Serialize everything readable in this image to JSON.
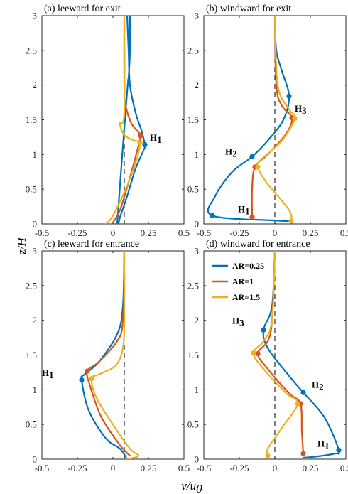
{
  "figure": {
    "xlabel_main": "v/u",
    "xlabel_sub": "0",
    "ylabel": "z/H",
    "colors": {
      "AR=0.25": "#0072BD",
      "AR=1": "#D95319",
      "AR=1.5": "#EDB120"
    }
  },
  "chart_data": [
    {
      "type": "line",
      "title": "(a) leeward for exit",
      "xlim": [
        -0.5,
        0.5
      ],
      "ylim": [
        0,
        3
      ],
      "xticks": [
        "-0.5",
        "-0.25",
        "0",
        "0.25",
        "0.5"
      ],
      "yticks": [
        "0",
        "0.5",
        "1",
        "1.5",
        "2",
        "2.5",
        "3"
      ],
      "reference_x": 0.08,
      "series": [
        {
          "name": "AR=0.25",
          "color": "#0072BD",
          "x": [
            0.12,
            0.12,
            0.11,
            0.1,
            0.03,
            0.05,
            0.1,
            0.16,
            0.22,
            0.225,
            0.2,
            0.16,
            0.12,
            0.11,
            0.1
          ],
          "y": [
            3.0,
            2.5,
            2.1,
            1.9,
            0.0,
            0.1,
            0.4,
            0.8,
            1.08,
            1.14,
            1.35,
            1.6,
            2.0,
            2.5,
            3.0
          ]
        },
        {
          "name": "AR=1",
          "color": "#D95319",
          "x": [
            0.08,
            0.08,
            0.09,
            0.13,
            0.18,
            0.195,
            0.17,
            0.11,
            0.05,
            0.0
          ],
          "y": [
            3.0,
            2.0,
            1.7,
            1.45,
            1.32,
            1.27,
            1.05,
            0.6,
            0.2,
            0.02
          ]
        },
        {
          "name": "AR=1.5",
          "color": "#EDB120",
          "x": [
            0.08,
            0.08,
            0.05,
            0.08,
            0.15,
            0.19,
            0.17,
            0.1,
            0.0,
            -0.05
          ],
          "y": [
            3.0,
            1.6,
            1.45,
            1.28,
            1.2,
            1.17,
            0.95,
            0.55,
            0.12,
            0.0
          ]
        }
      ],
      "markers": [
        {
          "series": "AR=0.25",
          "x": 0.225,
          "y": 1.14
        },
        {
          "series": "AR=1",
          "x": 0.195,
          "y": 1.27
        },
        {
          "series": "AR=1.5",
          "x": 0.19,
          "y": 1.17
        }
      ],
      "annotations": [
        {
          "main": "H",
          "sub": "1",
          "x": 0.26,
          "y": 1.2
        }
      ]
    },
    {
      "type": "line",
      "title": "(b) windward for exit",
      "xlim": [
        -0.5,
        0.5
      ],
      "ylim": [
        0,
        3
      ],
      "xticks": [
        "-0.5",
        "-0.25",
        "0",
        "0.25",
        "0.5"
      ],
      "yticks": [
        "0",
        "0.5",
        "1",
        "1.5",
        "2",
        "2.5",
        "3"
      ],
      "reference_x": 0.0,
      "series": [
        {
          "name": "AR=0.25",
          "color": "#0072BD",
          "x": [
            0.0,
            0.01,
            0.05,
            0.1,
            0.06,
            -0.05,
            -0.16,
            -0.3,
            -0.42,
            -0.44,
            0.0,
            0.11,
            0.115
          ],
          "y": [
            3.0,
            2.5,
            2.2,
            1.84,
            1.5,
            1.2,
            0.97,
            0.75,
            0.4,
            0.12,
            0.05,
            0.04,
            0.03
          ]
        },
        {
          "name": "AR=1",
          "color": "#D95319",
          "x": [
            0.0,
            0.01,
            0.05,
            0.12,
            0.08,
            -0.05,
            -0.14,
            -0.16,
            -0.16
          ],
          "y": [
            3.0,
            2.0,
            1.7,
            1.53,
            1.3,
            1.0,
            0.82,
            0.5,
            0.1
          ]
        },
        {
          "name": "AR=1.5",
          "color": "#EDB120",
          "x": [
            0.0,
            0.02,
            0.1,
            0.14,
            0.05,
            -0.1,
            -0.12,
            -0.06,
            0.1,
            0.115
          ],
          "y": [
            3.0,
            2.0,
            1.65,
            1.52,
            1.2,
            0.92,
            0.82,
            0.6,
            0.2,
            0.04
          ]
        }
      ],
      "markers": [
        {
          "series": "AR=0.25",
          "x": 0.1,
          "y": 1.84
        },
        {
          "series": "AR=0.25",
          "x": -0.16,
          "y": 0.97
        },
        {
          "series": "AR=0.25",
          "x": -0.44,
          "y": 0.12
        },
        {
          "series": "AR=1",
          "x": 0.12,
          "y": 1.53
        },
        {
          "series": "AR=1",
          "x": -0.14,
          "y": 0.82
        },
        {
          "series": "AR=1",
          "x": -0.16,
          "y": 0.1
        },
        {
          "series": "AR=1.5",
          "x": 0.14,
          "y": 1.52
        },
        {
          "series": "AR=1.5",
          "x": -0.12,
          "y": 0.82
        },
        {
          "series": "AR=1.5",
          "x": 0.115,
          "y": 0.04
        }
      ],
      "annotations": [
        {
          "main": "H",
          "sub": "3",
          "x": 0.14,
          "y": 1.62
        },
        {
          "main": "H",
          "sub": "2",
          "x": -0.35,
          "y": 1.0
        },
        {
          "main": "H",
          "sub": "1",
          "x": -0.26,
          "y": 0.17
        }
      ]
    },
    {
      "type": "line",
      "title": "(c) leeward for entrance",
      "xlim": [
        -0.5,
        0.5
      ],
      "ylim": [
        0,
        3
      ],
      "xticks": [
        "-0.5",
        "-0.25",
        "0",
        "0.25",
        "0.5"
      ],
      "yticks": [
        "0",
        "0.5",
        "1",
        "1.5",
        "2",
        "2.5",
        "3"
      ],
      "reference_x": 0.08,
      "series": [
        {
          "name": "AR=0.25",
          "color": "#0072BD",
          "x": [
            0.08,
            0.07,
            0.03,
            -0.1,
            -0.2,
            -0.22,
            -0.17,
            -0.05,
            0.05,
            0.1
          ],
          "y": [
            3.0,
            2.2,
            1.8,
            1.4,
            1.22,
            1.14,
            0.7,
            0.3,
            0.15,
            0.0
          ]
        },
        {
          "name": "AR=1",
          "color": "#D95319",
          "x": [
            0.08,
            0.07,
            0.03,
            -0.1,
            -0.18,
            -0.16,
            -0.08,
            0.05,
            0.12
          ],
          "y": [
            3.0,
            2.0,
            1.7,
            1.4,
            1.27,
            1.05,
            0.6,
            0.2,
            0.05
          ]
        },
        {
          "name": "AR=1.5",
          "color": "#EDB120",
          "x": [
            0.08,
            0.08,
            0.07,
            0.02,
            -0.1,
            -0.15,
            -0.12,
            0.0,
            0.12,
            0.18,
            0.1
          ],
          "y": [
            3.0,
            2.0,
            1.6,
            1.35,
            1.22,
            1.16,
            0.9,
            0.5,
            0.15,
            0.05,
            0.0
          ]
        }
      ],
      "markers": [
        {
          "series": "AR=0.25",
          "x": -0.22,
          "y": 1.14
        },
        {
          "series": "AR=1",
          "x": -0.18,
          "y": 1.27
        },
        {
          "series": "AR=1.5",
          "x": -0.15,
          "y": 1.16
        }
      ],
      "annotations": [
        {
          "main": "H",
          "sub": "1",
          "x": -0.5,
          "y": 1.2
        }
      ]
    },
    {
      "type": "line",
      "title": "(d) windward for entrance",
      "xlim": [
        -0.5,
        0.5
      ],
      "ylim": [
        0,
        3
      ],
      "xticks": [
        "-0.5",
        "-0.25",
        "0",
        "0.25",
        "0.5"
      ],
      "yticks": [
        "0",
        "0.5",
        "1",
        "1.5",
        "2",
        "2.5",
        "3"
      ],
      "reference_x": 0.0,
      "legend": {
        "location": "top-left",
        "entries": [
          "AR=0.25",
          "AR=1",
          "AR=1.5"
        ]
      },
      "series": [
        {
          "name": "AR=0.25",
          "color": "#0072BD",
          "x": [
            0.0,
            -0.02,
            -0.08,
            -0.05,
            0.1,
            0.2,
            0.35,
            0.45,
            0.42,
            0.3,
            0.2
          ],
          "y": [
            3.0,
            2.2,
            1.86,
            1.6,
            1.2,
            0.96,
            0.6,
            0.13,
            0.08,
            0.04,
            0.02
          ]
        },
        {
          "name": "AR=1",
          "color": "#D95319",
          "x": [
            0.0,
            -0.02,
            -0.05,
            -0.12,
            -0.05,
            0.1,
            0.18,
            0.19,
            0.2
          ],
          "y": [
            3.0,
            2.0,
            1.7,
            1.52,
            1.3,
            0.95,
            0.8,
            0.4,
            0.08
          ]
        },
        {
          "name": "AR=1.5",
          "color": "#EDB120",
          "x": [
            0.0,
            -0.02,
            -0.08,
            -0.15,
            -0.08,
            0.08,
            0.16,
            0.05,
            -0.05,
            -0.05
          ],
          "y": [
            3.0,
            2.0,
            1.7,
            1.53,
            1.3,
            0.95,
            0.8,
            0.45,
            0.15,
            0.05
          ]
        }
      ],
      "markers": [
        {
          "series": "AR=0.25",
          "x": -0.08,
          "y": 1.86
        },
        {
          "series": "AR=0.25",
          "x": 0.2,
          "y": 0.96
        },
        {
          "series": "AR=0.25",
          "x": 0.45,
          "y": 0.13
        },
        {
          "series": "AR=1",
          "x": -0.12,
          "y": 1.52
        },
        {
          "series": "AR=1",
          "x": 0.18,
          "y": 0.8
        },
        {
          "series": "AR=1",
          "x": 0.2,
          "y": 0.08
        },
        {
          "series": "AR=1.5",
          "x": -0.15,
          "y": 1.53
        },
        {
          "series": "AR=1.5",
          "x": 0.16,
          "y": 0.8
        },
        {
          "series": "AR=1.5",
          "x": -0.05,
          "y": 0.05
        }
      ],
      "annotations": [
        {
          "main": "H",
          "sub": "3",
          "x": -0.3,
          "y": 1.95
        },
        {
          "main": "H",
          "sub": "2",
          "x": 0.26,
          "y": 1.03
        },
        {
          "main": "H",
          "sub": "1",
          "x": 0.3,
          "y": 0.18
        }
      ]
    }
  ]
}
